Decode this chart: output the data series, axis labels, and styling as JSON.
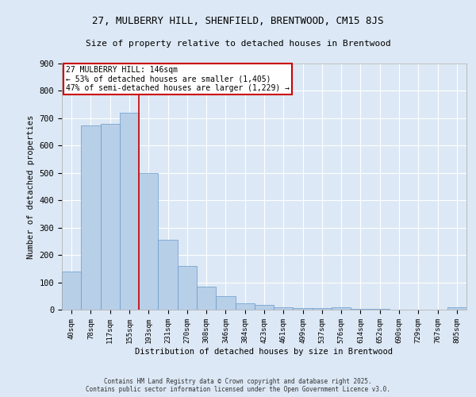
{
  "title_line1": "27, MULBERRY HILL, SHENFIELD, BRENTWOOD, CM15 8JS",
  "title_line2": "Size of property relative to detached houses in Brentwood",
  "xlabel": "Distribution of detached houses by size in Brentwood",
  "ylabel": "Number of detached properties",
  "bar_labels": [
    "40sqm",
    "78sqm",
    "117sqm",
    "155sqm",
    "193sqm",
    "231sqm",
    "270sqm",
    "308sqm",
    "346sqm",
    "384sqm",
    "423sqm",
    "461sqm",
    "499sqm",
    "537sqm",
    "576sqm",
    "614sqm",
    "652sqm",
    "690sqm",
    "729sqm",
    "767sqm",
    "805sqm"
  ],
  "bar_values": [
    140,
    675,
    680,
    720,
    500,
    255,
    160,
    85,
    50,
    22,
    18,
    8,
    5,
    5,
    8,
    3,
    2,
    1,
    1,
    1,
    8
  ],
  "bar_color": "#b8cfe8",
  "bar_edge_color": "#6699cc",
  "background_color": "#dce8f5",
  "grid_color": "#ffffff",
  "red_line_x": 3.5,
  "annotation_text": "27 MULBERRY HILL: 146sqm\n← 53% of detached houses are smaller (1,405)\n47% of semi-detached houses are larger (1,229) →",
  "annotation_box_color": "#ffffff",
  "annotation_box_edge": "#cc0000",
  "red_line_color": "#cc0000",
  "ylim": [
    0,
    900
  ],
  "yticks": [
    0,
    100,
    200,
    300,
    400,
    500,
    600,
    700,
    800,
    900
  ],
  "footer_line1": "Contains HM Land Registry data © Crown copyright and database right 2025.",
  "footer_line2": "Contains public sector information licensed under the Open Government Licence v3.0."
}
